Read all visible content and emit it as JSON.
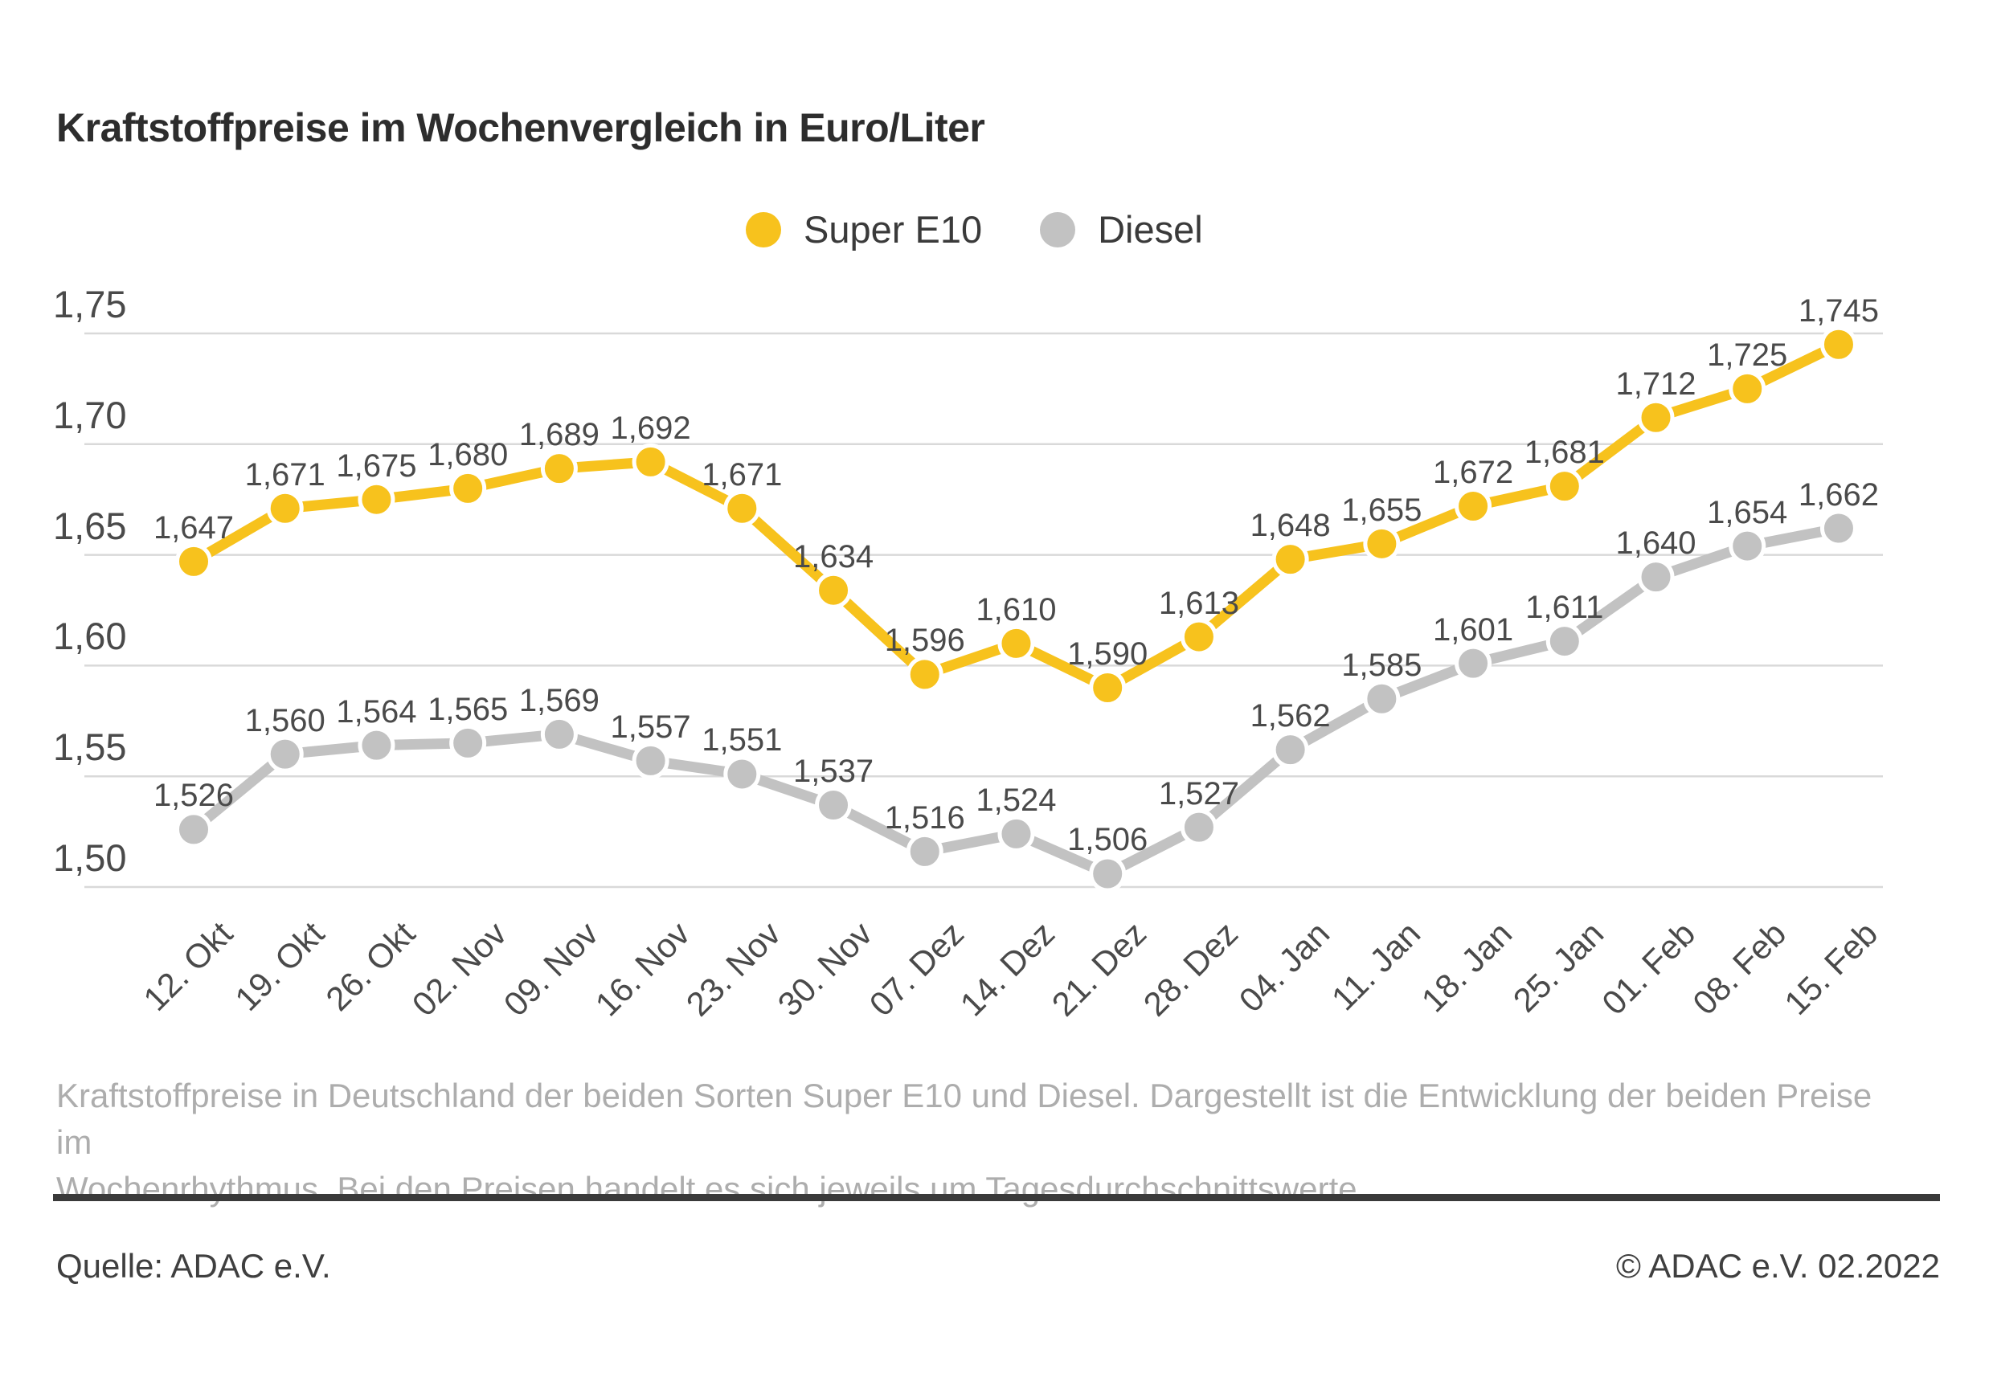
{
  "title": "Kraftstoffpreise im Wochenvergleich in Euro/Liter",
  "legend": {
    "items": [
      {
        "label": "Super E10",
        "color": "#f7c21d"
      },
      {
        "label": "Diesel",
        "color": "#c2c2c2"
      }
    ]
  },
  "chart_data": {
    "type": "line",
    "title": "Kraftstoffpreise im Wochenvergleich in Euro/Liter",
    "unit": "Euro/Liter",
    "categories": [
      "12. Okt",
      "19. Okt",
      "26. Okt",
      "02. Nov",
      "09. Nov",
      "16. Nov",
      "23. Nov",
      "30. Nov",
      "07. Dez",
      "14. Dez",
      "21. Dez",
      "28. Dez",
      "04. Jan",
      "11. Jan",
      "18. Jan",
      "25. Jan",
      "01. Feb",
      "08. Feb",
      "15. Feb"
    ],
    "series": [
      {
        "name": "Super E10",
        "color": "#f7c21d",
        "values": [
          1.647,
          1.671,
          1.675,
          1.68,
          1.689,
          1.692,
          1.671,
          1.634,
          1.596,
          1.61,
          1.59,
          1.613,
          1.648,
          1.655,
          1.672,
          1.681,
          1.712,
          1.725,
          1.745
        ],
        "labels": [
          "1,647",
          "1,671",
          "1,675",
          "1,680",
          "1,689",
          "1,692",
          "1,671",
          "1,634",
          "1,596",
          "1,610",
          "1,590",
          "1,613",
          "1,648",
          "1,655",
          "1,672",
          "1,681",
          "1,712",
          "1,725",
          "1,745"
        ]
      },
      {
        "name": "Diesel",
        "color": "#c2c2c2",
        "values": [
          1.526,
          1.56,
          1.564,
          1.565,
          1.569,
          1.557,
          1.551,
          1.537,
          1.516,
          1.524,
          1.506,
          1.527,
          1.562,
          1.585,
          1.601,
          1.611,
          1.64,
          1.654,
          1.662
        ],
        "labels": [
          "1,526",
          "1,560",
          "1,564",
          "1,565",
          "1,569",
          "1,557",
          "1,551",
          "1,537",
          "1,516",
          "1,524",
          "1,506",
          "1,527",
          "1,562",
          "1,585",
          "1,601",
          "1,611",
          "1,640",
          "1,654",
          "1,662"
        ]
      }
    ],
    "y_ticks": [
      "1,75",
      "1,70",
      "1,65",
      "1,60",
      "1,55",
      "1,50"
    ],
    "ylim": [
      1.5,
      1.75
    ],
    "grid": "horizontal",
    "grid_color": "#d9d9d9",
    "legend_position": "top-center"
  },
  "description": {
    "lines": [
      "Kraftstoffpreise in Deutschland der beiden Sorten Super E10 und Diesel. Dargestellt ist die Entwicklung der beiden Preise im",
      "Wochenrhythmus. Bei den Preisen handelt es sich jeweils um Tagesdurchschnittswerte."
    ]
  },
  "footer": {
    "source": "Quelle: ADAC e.V.",
    "copyright": "© ADAC e.V. 02.2022"
  }
}
